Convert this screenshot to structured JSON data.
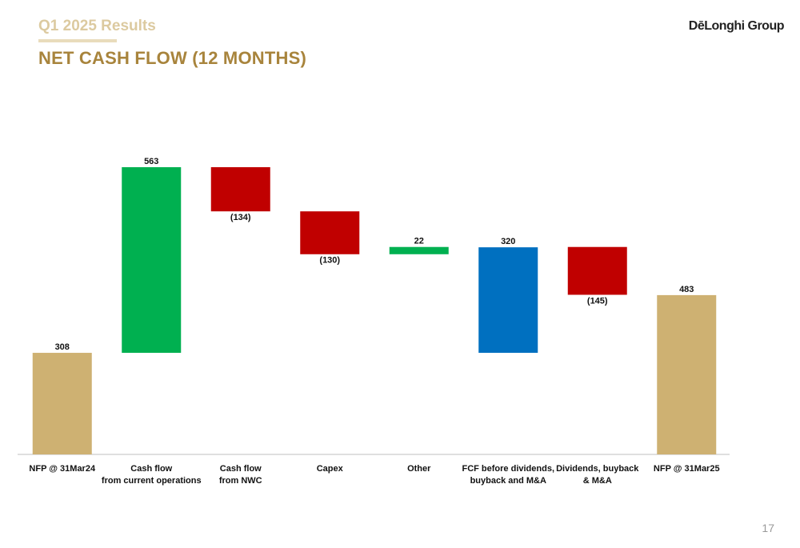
{
  "header": {
    "section": "Q1 2025 Results",
    "logo": "DēLonghi Group"
  },
  "page_number": 17,
  "chart_data": {
    "type": "waterfall",
    "title": "NET CASH FLOW (12 MONTHS)",
    "categories": [
      "NFP @ 31Mar24",
      "Cash flow\nfrom current operations",
      "Cash flow\nfrom NWC",
      "Capex",
      "Other",
      "FCF before dividends,\nbuyback and M&A",
      "Dividends, buyback\n& M&A",
      "NFP @ 31Mar25"
    ],
    "values": [
      308,
      563,
      -134,
      -130,
      22,
      320,
      -145,
      483
    ],
    "value_labels": [
      "308",
      "563",
      "(134)",
      "(130)",
      "22",
      "320",
      "(145)",
      "483"
    ],
    "measure": [
      "absolute",
      "relative",
      "relative",
      "relative",
      "relative",
      "subtotal",
      "relative",
      "absolute"
    ],
    "colors": [
      "#ceb172",
      "#00b050",
      "#c00000",
      "#c00000",
      "#00b050",
      "#0070c0",
      "#c00000",
      "#ceb172"
    ],
    "ylim": [
      0,
      900
    ]
  }
}
